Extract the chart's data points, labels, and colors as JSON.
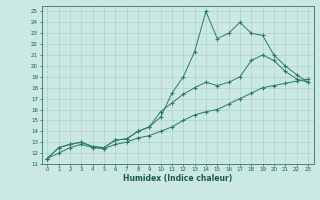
{
  "title": "",
  "xlabel": "Humidex (Indice chaleur)",
  "bg_color": "#cce8e4",
  "grid_color": "#aad4cc",
  "line_color": "#2a7a6a",
  "xlim": [
    -0.5,
    23.5
  ],
  "ylim": [
    11,
    25.5
  ],
  "yticks": [
    11,
    12,
    13,
    14,
    15,
    16,
    17,
    18,
    19,
    20,
    21,
    22,
    23,
    24,
    25
  ],
  "xticks": [
    0,
    1,
    2,
    3,
    4,
    5,
    6,
    7,
    8,
    9,
    10,
    11,
    12,
    13,
    14,
    15,
    16,
    17,
    18,
    19,
    20,
    21,
    22,
    23
  ],
  "line1": [
    11.5,
    12.5,
    12.8,
    13.0,
    12.6,
    12.5,
    13.2,
    13.3,
    14.0,
    14.4,
    15.3,
    17.5,
    19.0,
    21.3,
    25.0,
    22.5,
    23.0,
    24.0,
    23.0,
    22.8,
    21.0,
    20.0,
    19.2,
    18.5
  ],
  "line2": [
    11.5,
    12.5,
    12.8,
    13.0,
    12.6,
    12.5,
    13.2,
    13.3,
    14.0,
    14.4,
    15.8,
    16.6,
    17.4,
    18.0,
    18.5,
    18.2,
    18.5,
    19.0,
    20.5,
    21.0,
    20.5,
    19.5,
    18.8,
    18.5
  ],
  "line3": [
    11.5,
    12.0,
    12.5,
    12.8,
    12.5,
    12.4,
    12.8,
    13.0,
    13.4,
    13.6,
    14.0,
    14.4,
    15.0,
    15.5,
    15.8,
    16.0,
    16.5,
    17.0,
    17.5,
    18.0,
    18.2,
    18.4,
    18.6,
    18.8
  ]
}
